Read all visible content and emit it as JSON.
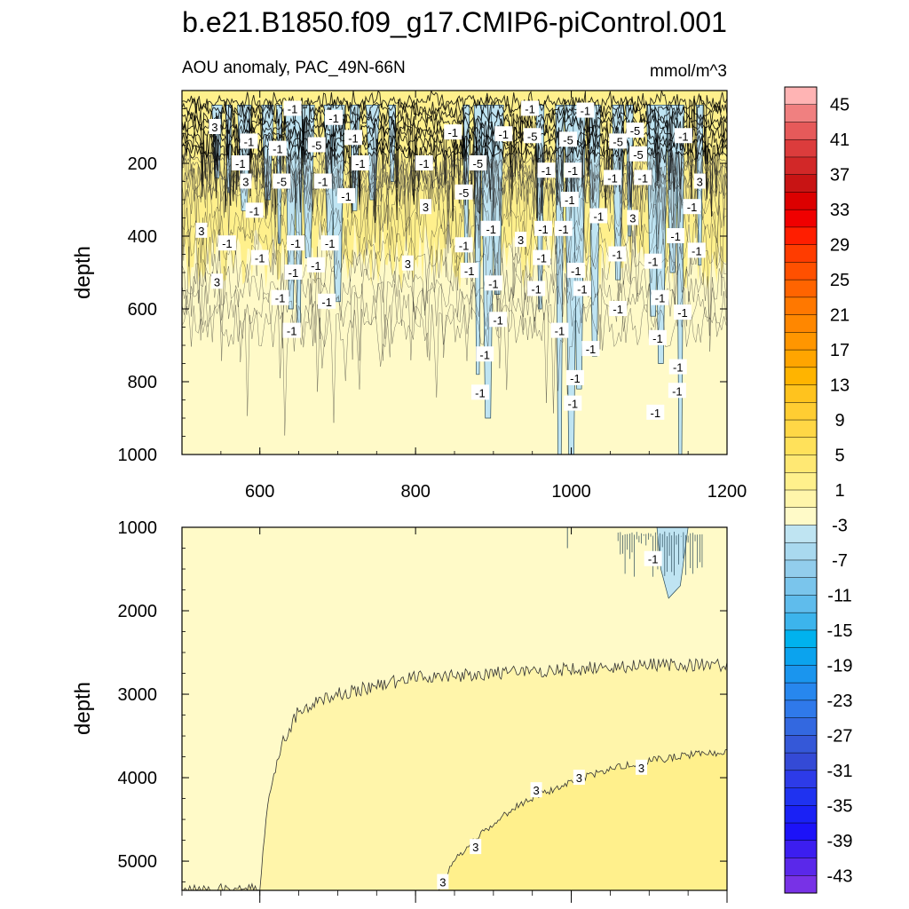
{
  "figure": {
    "title": "b.e21.B1850.f09_g17.CMIP6-piControl.001"
  },
  "chart_data": [
    {
      "type": "contour",
      "panel": "upper",
      "subtitle_left": "AOU anomaly, PAC_49N-66N",
      "subtitle_right": "mmol/m^3",
      "xlabel": "",
      "ylabel": "depth",
      "xlim": [
        500,
        1200
      ],
      "ylim": [
        1000,
        0
      ],
      "x_ticks": [
        600,
        800,
        1000,
        1200
      ],
      "y_ticks": [
        200,
        400,
        600,
        800,
        1000
      ],
      "negative_columns": [
        {
          "x": 545,
          "bottom": 240
        },
        {
          "x": 560,
          "bottom": 280
        },
        {
          "x": 580,
          "bottom": 330
        },
        {
          "x": 610,
          "bottom": 300
        },
        {
          "x": 625,
          "bottom": 420
        },
        {
          "x": 640,
          "bottom": 600
        },
        {
          "x": 650,
          "bottom": 650
        },
        {
          "x": 662,
          "bottom": 460
        },
        {
          "x": 690,
          "bottom": 430
        },
        {
          "x": 700,
          "bottom": 580
        },
        {
          "x": 722,
          "bottom": 330
        },
        {
          "x": 745,
          "bottom": 300
        },
        {
          "x": 770,
          "bottom": 250
        },
        {
          "x": 865,
          "bottom": 480
        },
        {
          "x": 880,
          "bottom": 780
        },
        {
          "x": 893,
          "bottom": 900
        },
        {
          "x": 905,
          "bottom": 560
        },
        {
          "x": 960,
          "bottom": 600
        },
        {
          "x": 985,
          "bottom": 1000
        },
        {
          "x": 1000,
          "bottom": 1000
        },
        {
          "x": 1010,
          "bottom": 820
        },
        {
          "x": 1030,
          "bottom": 730
        },
        {
          "x": 1060,
          "bottom": 520
        },
        {
          "x": 1075,
          "bottom": 400
        },
        {
          "x": 1105,
          "bottom": 620
        },
        {
          "x": 1115,
          "bottom": 750
        },
        {
          "x": 1130,
          "bottom": 500
        },
        {
          "x": 1140,
          "bottom": 1000
        },
        {
          "x": 1165,
          "bottom": 480
        }
      ],
      "contour_labels": [
        {
          "x": 542,
          "y": 100,
          "text": "3"
        },
        {
          "x": 642,
          "y": 50,
          "text": "-1"
        },
        {
          "x": 695,
          "y": 75,
          "text": "-1"
        },
        {
          "x": 586,
          "y": 140,
          "text": "-1"
        },
        {
          "x": 623,
          "y": 160,
          "text": "-1"
        },
        {
          "x": 575,
          "y": 200,
          "text": "-1"
        },
        {
          "x": 582,
          "y": 250,
          "text": "3"
        },
        {
          "x": 628,
          "y": 250,
          "text": "-5"
        },
        {
          "x": 673,
          "y": 150,
          "text": "-5"
        },
        {
          "x": 681,
          "y": 250,
          "text": "-1"
        },
        {
          "x": 720,
          "y": 130,
          "text": "-1"
        },
        {
          "x": 729,
          "y": 200,
          "text": "-1"
        },
        {
          "x": 711,
          "y": 290,
          "text": "-1"
        },
        {
          "x": 593,
          "y": 330,
          "text": "-1"
        },
        {
          "x": 525,
          "y": 385,
          "text": "3"
        },
        {
          "x": 558,
          "y": 420,
          "text": "-1"
        },
        {
          "x": 600,
          "y": 460,
          "text": "-1"
        },
        {
          "x": 646,
          "y": 420,
          "text": "-1"
        },
        {
          "x": 643,
          "y": 500,
          "text": "-1"
        },
        {
          "x": 690,
          "y": 420,
          "text": "-1"
        },
        {
          "x": 672,
          "y": 480,
          "text": "-1"
        },
        {
          "x": 545,
          "y": 525,
          "text": "3"
        },
        {
          "x": 626,
          "y": 570,
          "text": "-1"
        },
        {
          "x": 641,
          "y": 660,
          "text": "-1"
        },
        {
          "x": 686,
          "y": 580,
          "text": "-1"
        },
        {
          "x": 813,
          "y": 320,
          "text": "3"
        },
        {
          "x": 848,
          "y": 115,
          "text": "-1"
        },
        {
          "x": 811,
          "y": 200,
          "text": "-1"
        },
        {
          "x": 880,
          "y": 200,
          "text": "-5"
        },
        {
          "x": 862,
          "y": 280,
          "text": "-5"
        },
        {
          "x": 862,
          "y": 425,
          "text": "-1"
        },
        {
          "x": 790,
          "y": 475,
          "text": "3"
        },
        {
          "x": 869,
          "y": 495,
          "text": "-1"
        },
        {
          "x": 895,
          "y": 380,
          "text": "-1"
        },
        {
          "x": 913,
          "y": 120,
          "text": "-1"
        },
        {
          "x": 947,
          "y": 50,
          "text": "-1"
        },
        {
          "x": 1018,
          "y": 55,
          "text": "-1"
        },
        {
          "x": 1082,
          "y": 110,
          "text": "-5"
        },
        {
          "x": 1144,
          "y": 125,
          "text": "-1"
        },
        {
          "x": 950,
          "y": 125,
          "text": "-5"
        },
        {
          "x": 996,
          "y": 135,
          "text": "-5"
        },
        {
          "x": 1060,
          "y": 140,
          "text": "-5"
        },
        {
          "x": 1086,
          "y": 175,
          "text": "-5"
        },
        {
          "x": 968,
          "y": 220,
          "text": "-1"
        },
        {
          "x": 1002,
          "y": 220,
          "text": "-1"
        },
        {
          "x": 1053,
          "y": 240,
          "text": "-1"
        },
        {
          "x": 1092,
          "y": 240,
          "text": "-1"
        },
        {
          "x": 1165,
          "y": 250,
          "text": "3"
        },
        {
          "x": 998,
          "y": 300,
          "text": "-1"
        },
        {
          "x": 1035,
          "y": 345,
          "text": "-1"
        },
        {
          "x": 1079,
          "y": 350,
          "text": "3"
        },
        {
          "x": 1155,
          "y": 320,
          "text": "-1"
        },
        {
          "x": 935,
          "y": 410,
          "text": "3"
        },
        {
          "x": 964,
          "y": 380,
          "text": "-1"
        },
        {
          "x": 897,
          "y": 380,
          "text": "-1"
        },
        {
          "x": 990,
          "y": 380,
          "text": "-1"
        },
        {
          "x": 962,
          "y": 460,
          "text": "-1"
        },
        {
          "x": 1059,
          "y": 450,
          "text": "-1"
        },
        {
          "x": 1006,
          "y": 495,
          "text": "-1"
        },
        {
          "x": 1105,
          "y": 470,
          "text": "-1"
        },
        {
          "x": 1134,
          "y": 400,
          "text": "-1"
        },
        {
          "x": 1161,
          "y": 440,
          "text": "-1"
        },
        {
          "x": 900,
          "y": 530,
          "text": "-1"
        },
        {
          "x": 955,
          "y": 545,
          "text": "-1"
        },
        {
          "x": 1014,
          "y": 545,
          "text": "-1"
        },
        {
          "x": 1060,
          "y": 600,
          "text": "-1"
        },
        {
          "x": 1114,
          "y": 570,
          "text": "-1"
        },
        {
          "x": 1143,
          "y": 610,
          "text": "-1"
        },
        {
          "x": 906,
          "y": 630,
          "text": "-1"
        },
        {
          "x": 985,
          "y": 660,
          "text": "-1"
        },
        {
          "x": 1111,
          "y": 680,
          "text": "-1"
        },
        {
          "x": 1025,
          "y": 710,
          "text": "-1"
        },
        {
          "x": 889,
          "y": 725,
          "text": "-1"
        },
        {
          "x": 1137,
          "y": 760,
          "text": "-1"
        },
        {
          "x": 1005,
          "y": 790,
          "text": "-1"
        },
        {
          "x": 1136,
          "y": 825,
          "text": "-1"
        },
        {
          "x": 883,
          "y": 830,
          "text": "-1"
        },
        {
          "x": 1002,
          "y": 860,
          "text": "-1"
        },
        {
          "x": 1108,
          "y": 885,
          "text": "-1"
        }
      ]
    },
    {
      "type": "contour",
      "panel": "lower",
      "xlabel": "",
      "ylabel": "depth",
      "xlim": [
        500,
        1200
      ],
      "ylim": [
        5350,
        1000
      ],
      "x_ticks": [
        600,
        800,
        1000,
        1200
      ],
      "y_ticks": [
        1000,
        2000,
        3000,
        4000,
        5000
      ],
      "band_3_top": [
        {
          "x": 500,
          "y": 5350
        },
        {
          "x": 600,
          "y": 5350
        },
        {
          "x": 610,
          "y": 4300
        },
        {
          "x": 628,
          "y": 3600
        },
        {
          "x": 650,
          "y": 3200
        },
        {
          "x": 700,
          "y": 3000
        },
        {
          "x": 750,
          "y": 2900
        },
        {
          "x": 800,
          "y": 2800
        },
        {
          "x": 900,
          "y": 2750
        },
        {
          "x": 1000,
          "y": 2700
        },
        {
          "x": 1100,
          "y": 2650
        },
        {
          "x": 1200,
          "y": 2650
        }
      ],
      "band_5_top": [
        {
          "x": 830,
          "y": 5350
        },
        {
          "x": 850,
          "y": 5000
        },
        {
          "x": 880,
          "y": 4700
        },
        {
          "x": 920,
          "y": 4400
        },
        {
          "x": 960,
          "y": 4200
        },
        {
          "x": 1000,
          "y": 4050
        },
        {
          "x": 1050,
          "y": 3900
        },
        {
          "x": 1100,
          "y": 3800
        },
        {
          "x": 1150,
          "y": 3730
        },
        {
          "x": 1200,
          "y": 3700
        }
      ],
      "negative_patch": {
        "x_from": 1110,
        "x_to": 1150,
        "top": 1000,
        "bottom": 1850
      },
      "contour_labels": [
        {
          "x": 1105,
          "y": 1380,
          "text": "-1"
        },
        {
          "x": 835,
          "y": 5250,
          "text": "3"
        },
        {
          "x": 877,
          "y": 4830,
          "text": "3"
        },
        {
          "x": 955,
          "y": 4150,
          "text": "3"
        },
        {
          "x": 1010,
          "y": 4000,
          "text": "3"
        },
        {
          "x": 1090,
          "y": 3880,
          "text": "3"
        }
      ]
    }
  ],
  "colorbar": {
    "labels": [
      "45",
      "41",
      "37",
      "33",
      "29",
      "25",
      "21",
      "17",
      "13",
      "9",
      "5",
      "1",
      "-3",
      "-7",
      "-11",
      "-15",
      "-19",
      "-23",
      "-27",
      "-31",
      "-35",
      "-39",
      "-43"
    ],
    "colors": [
      "#ffb4b4",
      "#f08080",
      "#e65a5a",
      "#dc3c3c",
      "#d22828",
      "#c81414",
      "#dc0000",
      "#f00000",
      "#ff1e00",
      "#ff3c00",
      "#ff5000",
      "#ff6400",
      "#ff7800",
      "#ff8700",
      "#ff9600",
      "#ffa500",
      "#ffb400",
      "#ffc31e",
      "#ffcd32",
      "#ffd746",
      "#ffe15a",
      "#ffe873",
      "#fff08c",
      "#fff5aa",
      "#fffac8",
      "#bfe4f2",
      "#a9d9ef",
      "#92cdec",
      "#7ac5ec",
      "#5fbcec",
      "#3cb4ec",
      "#00b2ee",
      "#0ba3ee",
      "#1a95ee",
      "#2787ee",
      "#2f79ea",
      "#3368e0",
      "#3558d8",
      "#344ad6",
      "#2d3be8",
      "#1f32f0",
      "#1a21f5",
      "#1c12f8",
      "#3c1ef0",
      "#5a28ea",
      "#7832e6"
    ]
  }
}
